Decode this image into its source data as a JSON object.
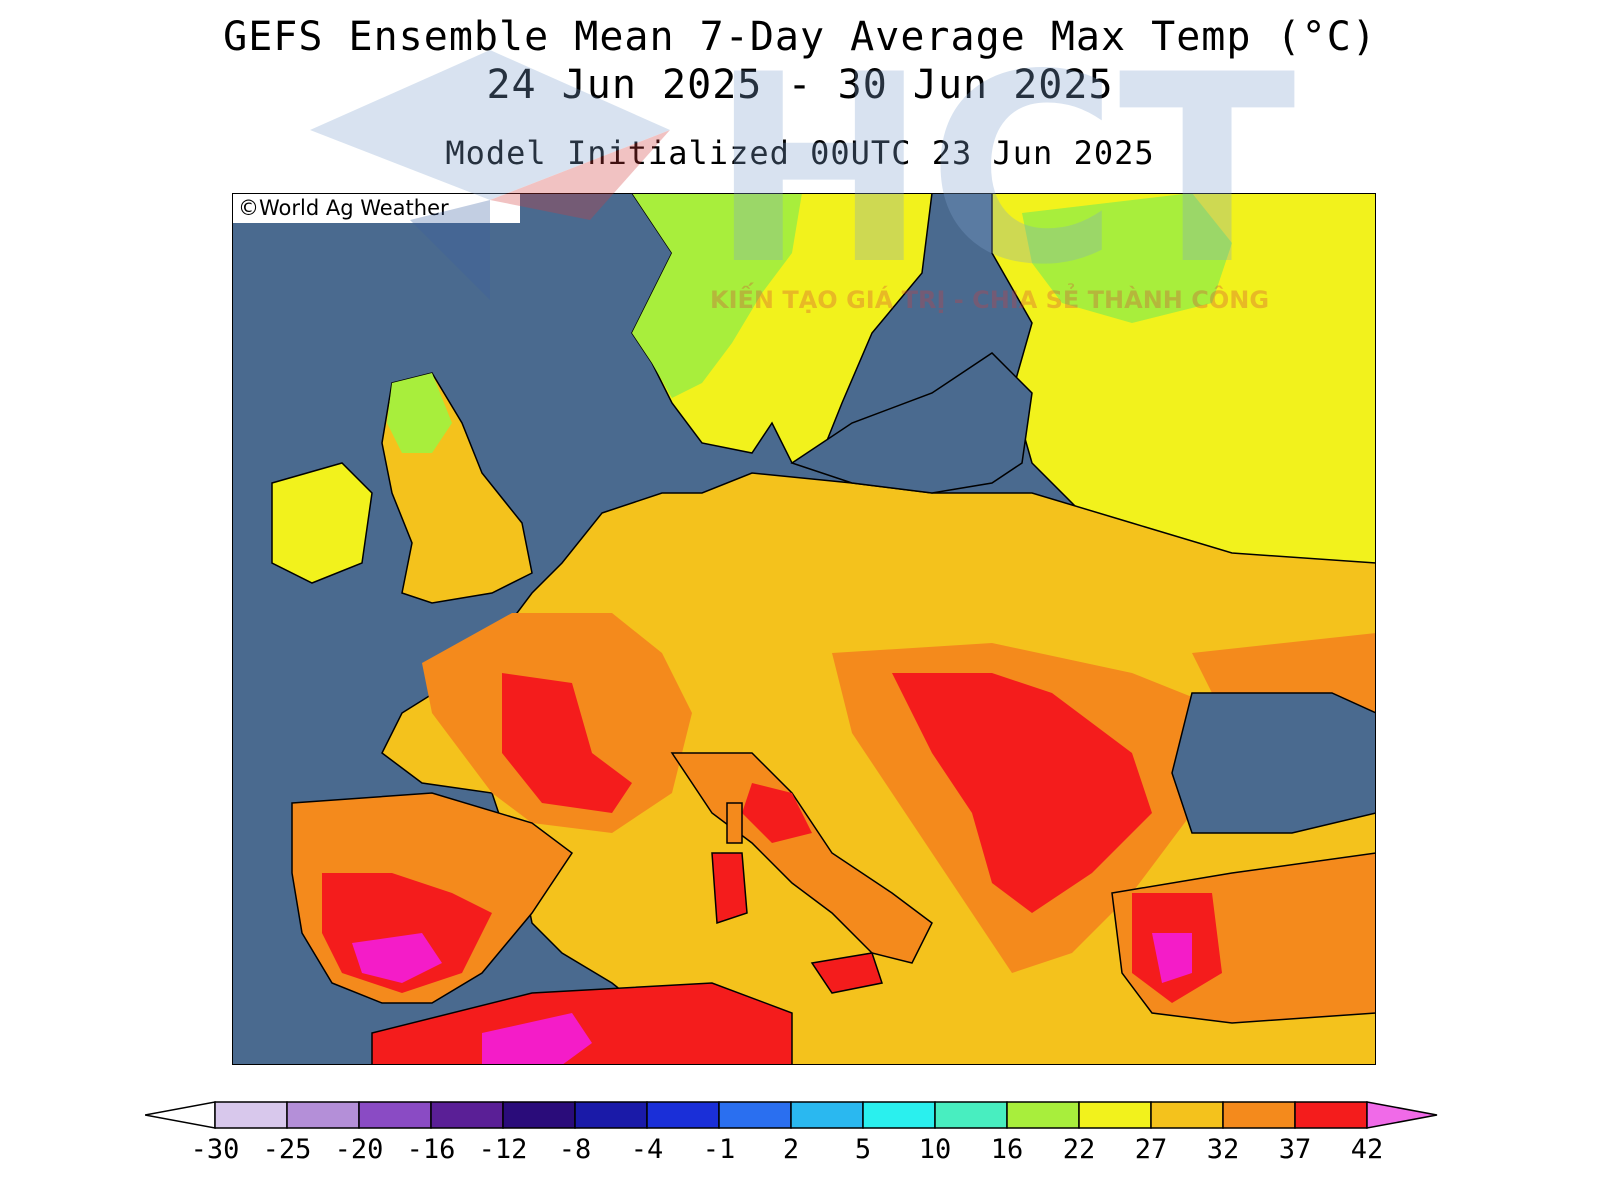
{
  "header": {
    "title": "GEFS Ensemble Mean 7-Day Average Max Temp (°C)",
    "date_range": "24 Jun 2025 - 30 Jun 2025",
    "model_init": "Model Initialized 00UTC 23 Jun 2025"
  },
  "map": {
    "credit": "©World Ag Weather",
    "region": "Europe",
    "ocean_color": "#4a6a8f"
  },
  "legend": {
    "ticks": [
      "-30",
      "-25",
      "-20",
      "-16",
      "-12",
      "-8",
      "-4",
      "-1",
      "2",
      "5",
      "10",
      "16",
      "22",
      "27",
      "32",
      "37",
      "42"
    ],
    "colors": [
      "#d8c8ec",
      "#b48fd8",
      "#8a4bc4",
      "#5a1f96",
      "#2a0c7a",
      "#1a1aa8",
      "#1a2fd8",
      "#2a6ff0",
      "#2ab8f0",
      "#2af0ee",
      "#48eec0",
      "#a8ee3c",
      "#f2f21c",
      "#f4c21c",
      "#f48a1c",
      "#f41c1c",
      "#f41cc8",
      "#f06ae8"
    ]
  },
  "watermark": {
    "text": "HCT",
    "tagline": "KIẾN TẠO GIÁ TRỊ - CHIA SẺ THÀNH CÔNG"
  }
}
